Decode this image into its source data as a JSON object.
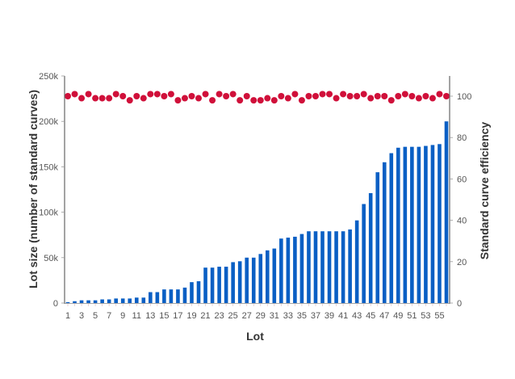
{
  "chart_data": {
    "type": "bar",
    "title": "",
    "xlabel": "Lot",
    "ylabel": "Lot size (number of standard curves)",
    "y2label": "Standard curve efficiency",
    "ylim": [
      0,
      250000
    ],
    "y2lim": [
      0,
      110
    ],
    "grid": false,
    "legend": null,
    "y_ticks": [
      "0",
      "50k",
      "100k",
      "150k",
      "200k",
      "250k"
    ],
    "y_tick_values": [
      0,
      50000,
      100000,
      150000,
      200000,
      250000
    ],
    "y2_ticks": [
      "0",
      "20",
      "40",
      "60",
      "80",
      "100"
    ],
    "y2_tick_values": [
      0,
      20,
      40,
      60,
      80,
      100
    ],
    "x_tick_labels": [
      "1",
      "3",
      "5",
      "7",
      "9",
      "11",
      "13",
      "15",
      "17",
      "19",
      "21",
      "23",
      "25",
      "27",
      "29",
      "31",
      "33",
      "35",
      "37",
      "39",
      "41",
      "43",
      "45",
      "47",
      "49",
      "51",
      "53",
      "55"
    ],
    "categories": [
      1,
      2,
      3,
      4,
      5,
      6,
      7,
      8,
      9,
      10,
      11,
      12,
      13,
      14,
      15,
      16,
      17,
      18,
      19,
      20,
      21,
      22,
      23,
      24,
      25,
      26,
      27,
      28,
      29,
      30,
      31,
      32,
      33,
      34,
      35,
      36,
      37,
      38,
      39,
      40,
      41,
      42,
      43,
      44,
      45,
      46,
      47,
      48,
      49,
      50,
      51,
      52,
      53,
      54,
      55,
      56
    ],
    "series": [
      {
        "name": "Lot size",
        "type": "bar",
        "axis": "left",
        "color": "#0a5fc4",
        "values": [
          1000,
          2000,
          3000,
          3000,
          3000,
          4000,
          4000,
          5000,
          5000,
          5000,
          6000,
          6000,
          12000,
          12000,
          15000,
          15000,
          15000,
          17000,
          23000,
          24000,
          39000,
          39000,
          40000,
          40000,
          45000,
          46000,
          50000,
          50000,
          54000,
          58000,
          60000,
          71000,
          72000,
          73000,
          76000,
          79000,
          79000,
          79000,
          79000,
          79000,
          79000,
          81000,
          91000,
          109000,
          121000,
          144000,
          155000,
          165000,
          171000,
          172000,
          172000,
          172000,
          173000,
          174000,
          175000,
          200000
        ]
      },
      {
        "name": "Standard curve efficiency",
        "type": "scatter",
        "axis": "right",
        "color": "#d0103a",
        "values": [
          100,
          101,
          99,
          101,
          99,
          99,
          99,
          101,
          100,
          98,
          100,
          99,
          101,
          101,
          100,
          101,
          98,
          99,
          100,
          99,
          101,
          98,
          101,
          100,
          101,
          98,
          100,
          98,
          98,
          99,
          98,
          100,
          99,
          101,
          98,
          100,
          100,
          101,
          101,
          99,
          101,
          100,
          100,
          101,
          99,
          100,
          100,
          98,
          100,
          101,
          100,
          99,
          100,
          99,
          101,
          100
        ]
      }
    ]
  }
}
